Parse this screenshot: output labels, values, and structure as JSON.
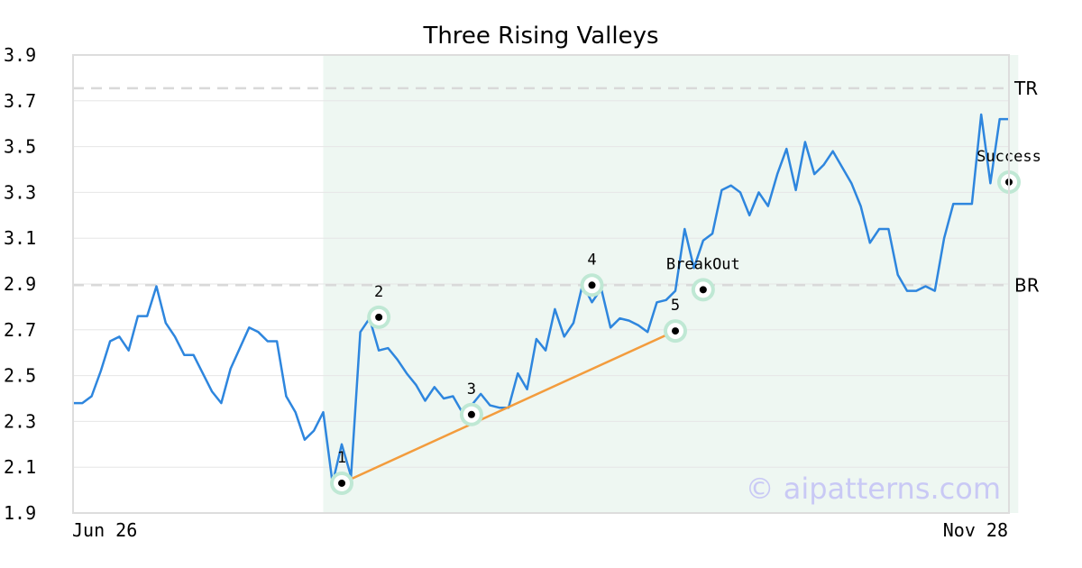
{
  "chart_data": {
    "type": "line",
    "title": "Three Rising Valleys",
    "watermark": "© aipatterns.com",
    "x_start_label": "Jun 26",
    "x_end_label": "Nov 28",
    "ylim": [
      1.9,
      3.9
    ],
    "yticks": [
      "3.9",
      "3.7",
      "3.5",
      "3.3",
      "3.1",
      "2.9",
      "2.7",
      "2.5",
      "2.3",
      "2.1",
      "1.9"
    ],
    "grid": true,
    "series_color": "#2e86de",
    "values": [
      2.38,
      2.38,
      2.41,
      2.52,
      2.65,
      2.67,
      2.61,
      2.76,
      2.76,
      2.89,
      2.73,
      2.67,
      2.59,
      2.59,
      2.51,
      2.43,
      2.38,
      2.53,
      2.62,
      2.71,
      2.69,
      2.65,
      2.65,
      2.41,
      2.34,
      2.22,
      2.26,
      2.34,
      2.03,
      2.2,
      2.06,
      2.69,
      2.75,
      2.61,
      2.62,
      2.57,
      2.51,
      2.46,
      2.39,
      2.45,
      2.4,
      2.41,
      2.34,
      2.37,
      2.42,
      2.37,
      2.36,
      2.36,
      2.51,
      2.44,
      2.66,
      2.61,
      2.79,
      2.67,
      2.73,
      2.9,
      2.82,
      2.88,
      2.71,
      2.75,
      2.74,
      2.72,
      2.69,
      2.82,
      2.83,
      2.87,
      3.14,
      2.97,
      3.09,
      3.12,
      3.31,
      3.33,
      3.3,
      3.2,
      3.3,
      3.24,
      3.38,
      3.49,
      3.31,
      3.52,
      3.38,
      3.42,
      3.48,
      3.41,
      3.34,
      3.24,
      3.08,
      3.14,
      3.14,
      2.94,
      2.87,
      2.87,
      2.89,
      2.87,
      3.1,
      3.25,
      3.25,
      3.25,
      3.64,
      3.34,
      3.62,
      3.62
    ],
    "shaded_range": [
      27,
      102
    ],
    "reference_lines": [
      {
        "name": "TR",
        "value": 3.755
      },
      {
        "name": "BR",
        "value": 2.895
      }
    ],
    "markers": [
      {
        "label": "1",
        "index": 29,
        "value": 2.03
      },
      {
        "label": "2",
        "index": 33,
        "value": 2.755
      },
      {
        "label": "3",
        "index": 43,
        "value": 2.33
      },
      {
        "label": "4",
        "index": 56,
        "value": 2.895
      },
      {
        "label": "5",
        "index": 65,
        "value": 2.695
      },
      {
        "label": "BreakOut",
        "index": 68,
        "value": 2.875
      },
      {
        "label": "Success",
        "index": 101,
        "value": 3.345
      }
    ],
    "trendline": {
      "from_index": 29,
      "from_value": 2.03,
      "to_index": 65,
      "to_value": 2.695,
      "color": "#f39c3d"
    }
  }
}
